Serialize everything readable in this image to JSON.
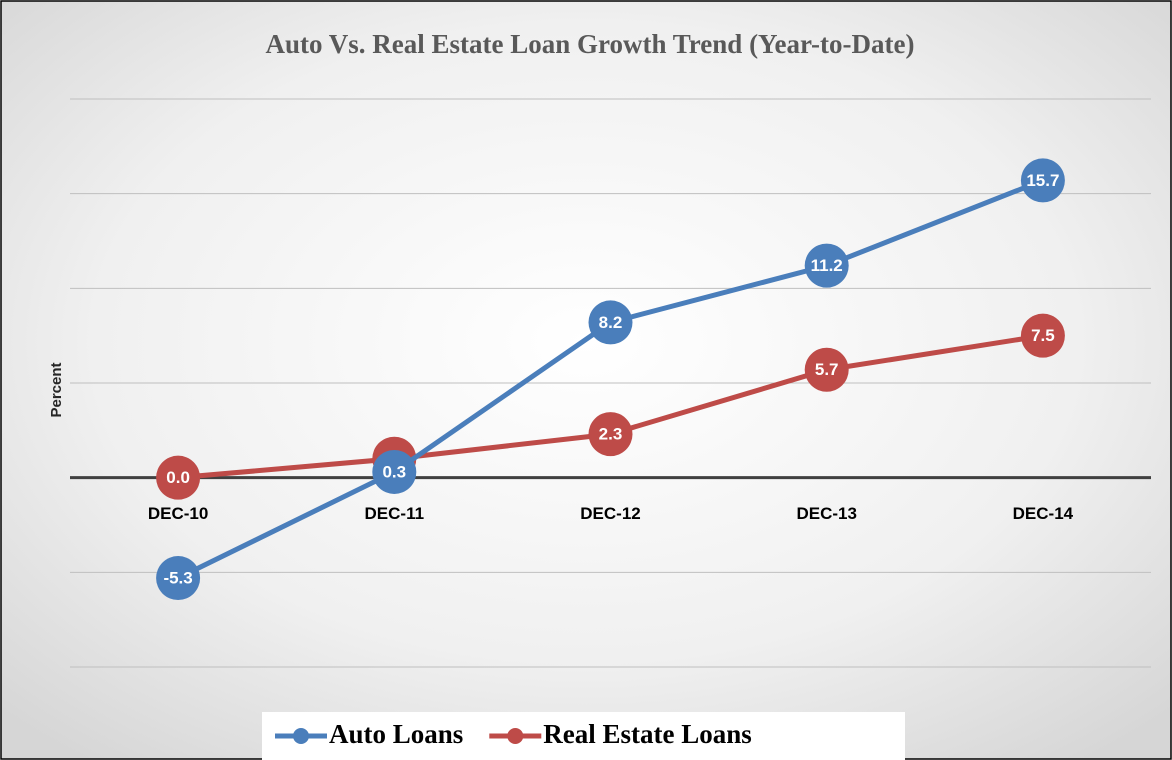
{
  "chart_data": {
    "type": "line",
    "title": "Auto Vs. Real Estate Loan Growth Trend (Year-to-Date)",
    "y_label": "Percent",
    "categories": [
      "DEC-10",
      "DEC-11",
      "DEC-12",
      "DEC-13",
      "DEC-14"
    ],
    "series": [
      {
        "name": "Auto Loans",
        "color": "#4a7ebb",
        "values": [
          -5.3,
          0.3,
          8.2,
          11.2,
          15.7
        ]
      },
      {
        "name": "Real Estate Loans",
        "color": "#be4b48",
        "values": [
          0.0,
          1.0,
          2.3,
          5.7,
          7.5
        ],
        "value_labels": [
          "0.0",
          "1.0",
          "2.3",
          "5.7",
          "7.5"
        ]
      }
    ],
    "ylim": [
      -10,
      20
    ],
    "yticks": [
      -10,
      -5,
      0,
      5,
      10,
      15,
      20
    ],
    "grid": true,
    "legend": "bottom"
  }
}
